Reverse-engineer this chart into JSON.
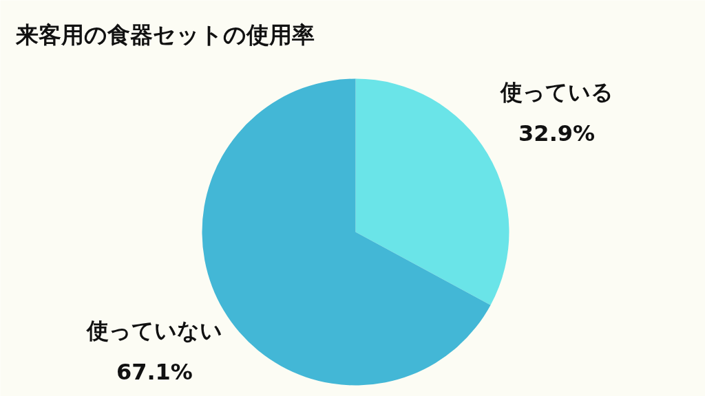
{
  "chart_data": {
    "type": "pie",
    "title": "来客用の食器セットの使用率",
    "categories": [
      "使っている",
      "使っていない"
    ],
    "values": [
      32.9,
      67.1
    ],
    "value_labels": [
      "32.9%",
      "67.1%"
    ],
    "colors": [
      "#6ae4e8",
      "#43b7d6"
    ]
  }
}
